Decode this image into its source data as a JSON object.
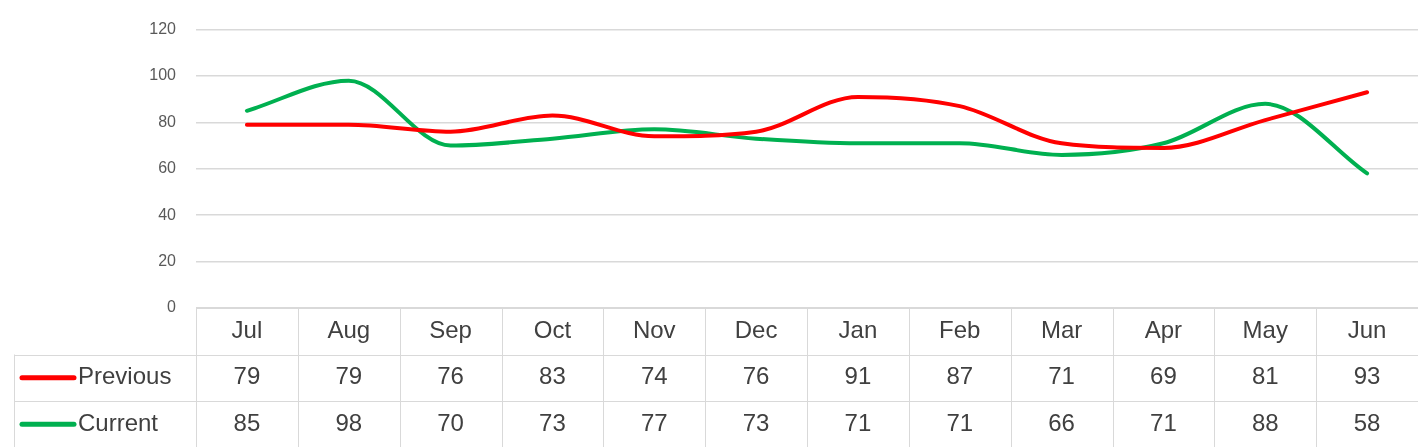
{
  "chart_data": {
    "type": "line",
    "categories": [
      "Jul",
      "Aug",
      "Sep",
      "Oct",
      "Nov",
      "Dec",
      "Jan",
      "Feb",
      "Mar",
      "Apr",
      "May",
      "Jun"
    ],
    "series": [
      {
        "name": "Previous",
        "color": "#ff0000",
        "values": [
          79,
          79,
          76,
          83,
          74,
          76,
          91,
          87,
          71,
          69,
          81,
          93
        ]
      },
      {
        "name": "Current",
        "color": "#00b050",
        "values": [
          85,
          98,
          70,
          73,
          77,
          73,
          71,
          71,
          66,
          71,
          88,
          58
        ]
      }
    ],
    "ylim": [
      0,
      120
    ],
    "yticks": [
      0,
      20,
      40,
      60,
      80,
      100,
      120
    ],
    "grid": "y",
    "legend": "bottom",
    "data_labels": true,
    "marker": "none",
    "line_style": "solid"
  }
}
